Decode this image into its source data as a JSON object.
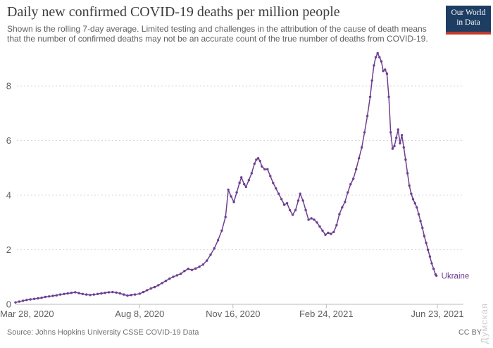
{
  "header": {
    "title": "Daily new confirmed COVID-19 deaths per million people",
    "subtitle_lines": [
      "Shown is the rolling 7-day average. Limited testing and challenges in the attribution of the cause of death means",
      "that the number of confirmed deaths may not be an accurate count of the true number of deaths from COVID-19."
    ],
    "logo": {
      "line1": "Our World",
      "line2": "in Data",
      "bg_color": "#1d3d63",
      "accent_color": "#c0392b"
    }
  },
  "footer": {
    "source": "Source: Johns Hopkins University CSSE COVID-19 Data",
    "license": "CC BY"
  },
  "watermark": "Думская",
  "colors": {
    "line": "#6d3e91",
    "grid": "#d8d8d8",
    "axis": "#bbbbbb",
    "tick_label": "#5f5f5f"
  },
  "chart_data": {
    "type": "line",
    "title": "Daily new confirmed COVID-19 deaths per million people",
    "xlabel": "",
    "ylabel": "",
    "grid": "horizontal-dashed",
    "legend_position": "end-of-line-label",
    "end_label": "Ukraine",
    "y_ticks": [
      0,
      2,
      4,
      6,
      8
    ],
    "ylim": [
      0,
      9.6
    ],
    "x_ticks": [
      {
        "label": "Mar 28, 2020",
        "date": "2020-03-28"
      },
      {
        "label": "Aug 8, 2020",
        "date": "2020-08-08"
      },
      {
        "label": "Nov 16, 2020",
        "date": "2020-11-16"
      },
      {
        "label": "Feb 24, 2021",
        "date": "2021-02-24"
      },
      {
        "label": "Jun 23, 2021",
        "date": "2021-06-23"
      }
    ],
    "series": [
      {
        "name": "Ukraine",
        "color": "#6d3e91",
        "points": [
          [
            "2020-03-28",
            0.07
          ],
          [
            "2020-04-01",
            0.1
          ],
          [
            "2020-04-05",
            0.13
          ],
          [
            "2020-04-09",
            0.16
          ],
          [
            "2020-04-13",
            0.18
          ],
          [
            "2020-04-17",
            0.2
          ],
          [
            "2020-04-21",
            0.22
          ],
          [
            "2020-04-25",
            0.24
          ],
          [
            "2020-04-29",
            0.27
          ],
          [
            "2020-05-03",
            0.29
          ],
          [
            "2020-05-07",
            0.31
          ],
          [
            "2020-05-11",
            0.33
          ],
          [
            "2020-05-15",
            0.36
          ],
          [
            "2020-05-19",
            0.38
          ],
          [
            "2020-05-23",
            0.4
          ],
          [
            "2020-05-27",
            0.42
          ],
          [
            "2020-05-31",
            0.44
          ],
          [
            "2020-06-04",
            0.41
          ],
          [
            "2020-06-08",
            0.38
          ],
          [
            "2020-06-12",
            0.36
          ],
          [
            "2020-06-16",
            0.34
          ],
          [
            "2020-06-20",
            0.36
          ],
          [
            "2020-06-24",
            0.38
          ],
          [
            "2020-06-28",
            0.4
          ],
          [
            "2020-07-02",
            0.42
          ],
          [
            "2020-07-06",
            0.44
          ],
          [
            "2020-07-10",
            0.45
          ],
          [
            "2020-07-14",
            0.43
          ],
          [
            "2020-07-18",
            0.4
          ],
          [
            "2020-07-22",
            0.36
          ],
          [
            "2020-07-26",
            0.32
          ],
          [
            "2020-07-30",
            0.34
          ],
          [
            "2020-08-03",
            0.36
          ],
          [
            "2020-08-08",
            0.39
          ],
          [
            "2020-08-12",
            0.45
          ],
          [
            "2020-08-16",
            0.52
          ],
          [
            "2020-08-20",
            0.58
          ],
          [
            "2020-08-24",
            0.63
          ],
          [
            "2020-08-28",
            0.7
          ],
          [
            "2020-09-01",
            0.78
          ],
          [
            "2020-09-05",
            0.86
          ],
          [
            "2020-09-09",
            0.94
          ],
          [
            "2020-09-13",
            1.01
          ],
          [
            "2020-09-17",
            1.06
          ],
          [
            "2020-09-21",
            1.12
          ],
          [
            "2020-09-25",
            1.22
          ],
          [
            "2020-09-29",
            1.3
          ],
          [
            "2020-10-03",
            1.26
          ],
          [
            "2020-10-07",
            1.31
          ],
          [
            "2020-10-11",
            1.38
          ],
          [
            "2020-10-15",
            1.46
          ],
          [
            "2020-10-19",
            1.6
          ],
          [
            "2020-10-23",
            1.82
          ],
          [
            "2020-10-27",
            2.05
          ],
          [
            "2020-10-31",
            2.35
          ],
          [
            "2020-11-04",
            2.7
          ],
          [
            "2020-11-08",
            3.2
          ],
          [
            "2020-11-11",
            4.2
          ],
          [
            "2020-11-14",
            3.95
          ],
          [
            "2020-11-17",
            3.75
          ],
          [
            "2020-11-20",
            4.1
          ],
          [
            "2020-11-23",
            4.45
          ],
          [
            "2020-11-25",
            4.65
          ],
          [
            "2020-11-28",
            4.4
          ],
          [
            "2020-11-30",
            4.3
          ],
          [
            "2020-12-03",
            4.55
          ],
          [
            "2020-12-06",
            4.8
          ],
          [
            "2020-12-09",
            5.15
          ],
          [
            "2020-12-11",
            5.3
          ],
          [
            "2020-12-13",
            5.35
          ],
          [
            "2020-12-15",
            5.25
          ],
          [
            "2020-12-17",
            5.05
          ],
          [
            "2020-12-20",
            4.95
          ],
          [
            "2020-12-23",
            4.95
          ],
          [
            "2020-12-26",
            4.7
          ],
          [
            "2020-12-29",
            4.45
          ],
          [
            "2021-01-01",
            4.25
          ],
          [
            "2021-01-04",
            4.05
          ],
          [
            "2021-01-07",
            3.85
          ],
          [
            "2021-01-10",
            3.65
          ],
          [
            "2021-01-13",
            3.7
          ],
          [
            "2021-01-16",
            3.45
          ],
          [
            "2021-01-19",
            3.28
          ],
          [
            "2021-01-22",
            3.45
          ],
          [
            "2021-01-25",
            3.8
          ],
          [
            "2021-01-27",
            4.05
          ],
          [
            "2021-01-30",
            3.8
          ],
          [
            "2021-02-02",
            3.45
          ],
          [
            "2021-02-05",
            3.1
          ],
          [
            "2021-02-08",
            3.15
          ],
          [
            "2021-02-11",
            3.1
          ],
          [
            "2021-02-14",
            3.0
          ],
          [
            "2021-02-17",
            2.85
          ],
          [
            "2021-02-20",
            2.7
          ],
          [
            "2021-02-23",
            2.55
          ],
          [
            "2021-02-26",
            2.62
          ],
          [
            "2021-03-01",
            2.58
          ],
          [
            "2021-03-04",
            2.65
          ],
          [
            "2021-03-07",
            2.9
          ],
          [
            "2021-03-10",
            3.3
          ],
          [
            "2021-03-13",
            3.55
          ],
          [
            "2021-03-16",
            3.75
          ],
          [
            "2021-03-19",
            4.1
          ],
          [
            "2021-03-22",
            4.4
          ],
          [
            "2021-03-25",
            4.6
          ],
          [
            "2021-03-28",
            4.95
          ],
          [
            "2021-03-31",
            5.35
          ],
          [
            "2021-04-03",
            5.75
          ],
          [
            "2021-04-06",
            6.3
          ],
          [
            "2021-04-09",
            6.9
          ],
          [
            "2021-04-12",
            7.6
          ],
          [
            "2021-04-14",
            8.2
          ],
          [
            "2021-04-16",
            8.75
          ],
          [
            "2021-04-18",
            9.05
          ],
          [
            "2021-04-20",
            9.2
          ],
          [
            "2021-04-22",
            9.05
          ],
          [
            "2021-04-24",
            8.9
          ],
          [
            "2021-04-26",
            8.55
          ],
          [
            "2021-04-28",
            8.6
          ],
          [
            "2021-04-30",
            8.45
          ],
          [
            "2021-05-02",
            7.6
          ],
          [
            "2021-05-04",
            6.3
          ],
          [
            "2021-05-06",
            5.7
          ],
          [
            "2021-05-08",
            5.8
          ],
          [
            "2021-05-10",
            6.1
          ],
          [
            "2021-05-12",
            6.4
          ],
          [
            "2021-05-14",
            5.9
          ],
          [
            "2021-05-16",
            6.2
          ],
          [
            "2021-05-18",
            5.75
          ],
          [
            "2021-05-20",
            5.3
          ],
          [
            "2021-05-22",
            4.8
          ],
          [
            "2021-05-24",
            4.35
          ],
          [
            "2021-05-26",
            4.05
          ],
          [
            "2021-05-28",
            3.85
          ],
          [
            "2021-05-30",
            3.7
          ],
          [
            "2021-06-01",
            3.55
          ],
          [
            "2021-06-03",
            3.3
          ],
          [
            "2021-06-05",
            3.05
          ],
          [
            "2021-06-07",
            2.8
          ],
          [
            "2021-06-09",
            2.5
          ],
          [
            "2021-06-11",
            2.25
          ],
          [
            "2021-06-13",
            2.0
          ],
          [
            "2021-06-15",
            1.75
          ],
          [
            "2021-06-17",
            1.5
          ],
          [
            "2021-06-19",
            1.3
          ],
          [
            "2021-06-21",
            1.1
          ],
          [
            "2021-06-22",
            1.05
          ]
        ]
      }
    ]
  }
}
